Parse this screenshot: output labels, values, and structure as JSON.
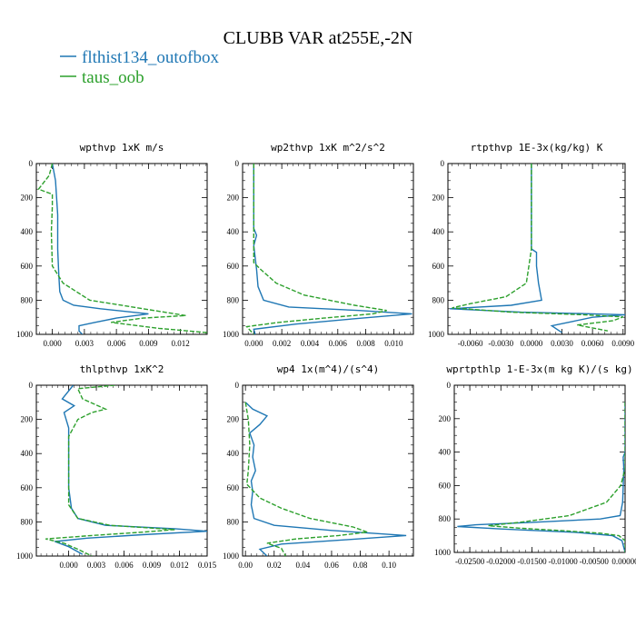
{
  "figure_title": "CLUBB VAR at255E,-2N",
  "legend": [
    {
      "label": "flthist134_outofbox",
      "color": "#1f77b4",
      "dash": "solid"
    },
    {
      "label": "taus_oob",
      "color": "#2ca02c",
      "dash": "dashed"
    }
  ],
  "chart_data": [
    {
      "type": "line",
      "title": "wpthvp  1xK m/s",
      "ylim": [
        1000,
        0
      ],
      "yticks": [
        0,
        200,
        400,
        600,
        800,
        1000
      ],
      "xlim": [
        -0.0015,
        0.0145
      ],
      "xticks": [
        0,
        0.003,
        0.006,
        0.009,
        0.012
      ],
      "xticklabels": [
        "0.000",
        "0.003",
        "0.006",
        "0.009",
        "0.012"
      ],
      "series": [
        {
          "name": "flthist134_outofbox",
          "points": [
            [
              0.0,
              0
            ],
            [
              0.0003,
              100
            ],
            [
              0.0005,
              300
            ],
            [
              0.0005,
              500
            ],
            [
              0.0006,
              650
            ],
            [
              0.0007,
              750
            ],
            [
              0.001,
              800
            ],
            [
              0.002,
              830
            ],
            [
              0.0045,
              850
            ],
            [
              0.009,
              880
            ],
            [
              0.006,
              905
            ],
            [
              0.004,
              930
            ],
            [
              0.0025,
              950
            ],
            [
              0.0025,
              980
            ],
            [
              0.0028,
              1000
            ]
          ]
        },
        {
          "name": "taus_oob",
          "points": [
            [
              0.0,
              0
            ],
            [
              -0.0003,
              70
            ],
            [
              -0.0013,
              150
            ],
            [
              0.0,
              180
            ],
            [
              0.0,
              250
            ],
            [
              -0.0001,
              400
            ],
            [
              0.0,
              600
            ],
            [
              0.001,
              700
            ],
            [
              0.0035,
              800
            ],
            [
              0.0075,
              840
            ],
            [
              0.0105,
              870
            ],
            [
              0.0125,
              890
            ],
            [
              0.0085,
              905
            ],
            [
              0.0055,
              930
            ],
            [
              0.01,
              965
            ],
            [
              0.0145,
              990
            ]
          ]
        }
      ]
    },
    {
      "type": "line",
      "title": "wp2thvp  1xK m^2/s^2",
      "ylim": [
        1000,
        0
      ],
      "yticks": [
        0,
        200,
        400,
        600,
        800,
        1000
      ],
      "xlim": [
        -0.0008,
        0.0114
      ],
      "xticks": [
        0,
        0.002,
        0.004,
        0.006,
        0.008,
        0.01
      ],
      "xticklabels": [
        "0.000",
        "0.002",
        "0.004",
        "0.006",
        "0.008",
        "0.010"
      ],
      "series": [
        {
          "name": "flthist134_outofbox",
          "points": [
            [
              0.0,
              0
            ],
            [
              0.0,
              200
            ],
            [
              0.0,
              380
            ],
            [
              0.0002,
              420
            ],
            [
              0.0,
              480
            ],
            [
              0.0002,
              620
            ],
            [
              0.0003,
              720
            ],
            [
              0.0007,
              800
            ],
            [
              0.0025,
              840
            ],
            [
              0.0075,
              860
            ],
            [
              0.0113,
              880
            ],
            [
              0.007,
              910
            ],
            [
              0.003,
              940
            ],
            [
              0.0,
              970
            ],
            [
              0.0001,
              1000
            ]
          ]
        },
        {
          "name": "taus_oob",
          "points": [
            [
              0.0,
              0
            ],
            [
              0.0,
              150
            ],
            [
              0.0,
              300
            ],
            [
              0.0,
              450
            ],
            [
              0.0,
              580
            ],
            [
              0.0005,
              620
            ],
            [
              0.0016,
              700
            ],
            [
              0.0036,
              770
            ],
            [
              0.0072,
              830
            ],
            [
              0.0095,
              860
            ],
            [
              0.0085,
              880
            ],
            [
              0.005,
              905
            ],
            [
              0.0018,
              930
            ],
            [
              -0.0005,
              955
            ],
            [
              0.0,
              1000
            ]
          ]
        }
      ]
    },
    {
      "type": "line",
      "title": "rtpthvp  1E-3x(kg/kg) K",
      "ylim": [
        1000,
        0
      ],
      "yticks": [
        0,
        200,
        400,
        600,
        800,
        1000
      ],
      "xlim": [
        -0.0082,
        0.0092
      ],
      "xticks": [
        -0.006,
        -0.003,
        0,
        0.003,
        0.006,
        0.009
      ],
      "xticklabels": [
        "-0.0060",
        "-0.0030",
        "0.0000",
        "0.0030",
        "0.0060",
        "0.0090"
      ],
      "series": [
        {
          "name": "flthist134_outofbox",
          "points": [
            [
              0.0,
              0
            ],
            [
              0.0,
              300
            ],
            [
              0.0,
              500
            ],
            [
              0.0005,
              520
            ],
            [
              0.0005,
              600
            ],
            [
              0.0007,
              700
            ],
            [
              0.001,
              800
            ],
            [
              -0.002,
              830
            ],
            [
              -0.008,
              850
            ],
            [
              -0.001,
              870
            ],
            [
              0.006,
              880
            ],
            [
              0.0092,
              885
            ],
            [
              0.006,
              900
            ],
            [
              0.004,
              925
            ],
            [
              0.002,
              950
            ],
            [
              0.003,
              990
            ]
          ]
        },
        {
          "name": "taus_oob",
          "points": [
            [
              0.0,
              0
            ],
            [
              0.0,
              300
            ],
            [
              0.0,
              500
            ],
            [
              -0.0005,
              700
            ],
            [
              -0.0025,
              780
            ],
            [
              -0.006,
              820
            ],
            [
              -0.0078,
              845
            ],
            [
              -0.002,
              870
            ],
            [
              0.005,
              885
            ],
            [
              0.009,
              898
            ],
            [
              0.008,
              920
            ],
            [
              0.0045,
              945
            ],
            [
              0.0075,
              980
            ]
          ]
        }
      ]
    },
    {
      "type": "line",
      "title": "thlpthvp  1xK^2",
      "ylim": [
        1000,
        0
      ],
      "yticks": [
        0,
        200,
        400,
        600,
        800,
        1000
      ],
      "xlim": [
        -0.0035,
        0.015
      ],
      "xticks": [
        0,
        0.003,
        0.006,
        0.009,
        0.012,
        0.015
      ],
      "xticklabels": [
        "0.000",
        "0.003",
        "0.006",
        "0.009",
        "0.012",
        "0.015"
      ],
      "series": [
        {
          "name": "flthist134_outofbox",
          "points": [
            [
              0.0005,
              0
            ],
            [
              -0.0007,
              80
            ],
            [
              0.0006,
              120
            ],
            [
              -0.0005,
              160
            ],
            [
              0.0,
              250
            ],
            [
              0.0,
              400
            ],
            [
              0.0,
              600
            ],
            [
              0.0003,
              720
            ],
            [
              0.001,
              780
            ],
            [
              0.004,
              820
            ],
            [
              0.0115,
              840
            ],
            [
              0.015,
              855
            ],
            [
              0.008,
              875
            ],
            [
              0.002,
              895
            ],
            [
              -0.0015,
              915
            ],
            [
              0.0,
              945
            ],
            [
              0.0015,
              990
            ]
          ]
        },
        {
          "name": "taus_oob",
          "points": [
            [
              0.005,
              0
            ],
            [
              0.001,
              20
            ],
            [
              0.0015,
              80
            ],
            [
              0.004,
              140
            ],
            [
              0.0025,
              160
            ],
            [
              0.001,
              200
            ],
            [
              0.0,
              300
            ],
            [
              0.0,
              500
            ],
            [
              0.0,
              700
            ],
            [
              0.001,
              780
            ],
            [
              0.0045,
              820
            ],
            [
              0.0115,
              845
            ],
            [
              0.008,
              860
            ],
            [
              0.0025,
              880
            ],
            [
              -0.0025,
              900
            ],
            [
              -0.0005,
              925
            ],
            [
              0.001,
              960
            ],
            [
              0.0025,
              1000
            ]
          ]
        }
      ]
    },
    {
      "type": "line",
      "title": "wp4  1x(m^4)/(s^4)",
      "ylim": [
        1000,
        0
      ],
      "yticks": [
        0,
        200,
        400,
        600,
        800,
        1000
      ],
      "xlim": [
        -0.002,
        0.117
      ],
      "xticks": [
        0,
        0.02,
        0.04,
        0.06,
        0.08,
        0.1
      ],
      "xticklabels": [
        "0.00",
        "0.02",
        "0.04",
        "0.06",
        "0.08",
        "0.10"
      ],
      "series": [
        {
          "name": "flthist134_outofbox",
          "points": [
            [
              0.0,
              100
            ],
            [
              0.005,
              140
            ],
            [
              0.015,
              180
            ],
            [
              0.01,
              230
            ],
            [
              0.003,
              280
            ],
            [
              0.006,
              350
            ],
            [
              0.005,
              420
            ],
            [
              0.007,
              500
            ],
            [
              0.004,
              560
            ],
            [
              0.005,
              620
            ],
            [
              0.004,
              700
            ],
            [
              0.006,
              780
            ],
            [
              0.02,
              820
            ],
            [
              0.06,
              850
            ],
            [
              0.112,
              880
            ],
            [
              0.07,
              905
            ],
            [
              0.025,
              930
            ],
            [
              0.01,
              960
            ],
            [
              0.015,
              1000
            ]
          ]
        },
        {
          "name": "taus_oob",
          "points": [
            [
              0.0,
              100
            ],
            [
              0.002,
              200
            ],
            [
              0.003,
              350
            ],
            [
              0.002,
              500
            ],
            [
              0.001,
              580
            ],
            [
              0.01,
              660
            ],
            [
              0.025,
              720
            ],
            [
              0.045,
              780
            ],
            [
              0.075,
              830
            ],
            [
              0.085,
              860
            ],
            [
              0.065,
              880
            ],
            [
              0.035,
              900
            ],
            [
              0.015,
              925
            ],
            [
              0.025,
              955
            ],
            [
              0.028,
              1000
            ]
          ]
        }
      ]
    },
    {
      "type": "line",
      "title": "wprtpthlp  1-E-3x(m kg K)/(s kg)",
      "ylim": [
        1000,
        0
      ],
      "yticks": [
        0,
        200,
        400,
        600,
        800,
        1000
      ],
      "xlim": [
        -0.0275,
        0.0
      ],
      "xticks": [
        -0.025,
        -0.02,
        -0.015,
        -0.01,
        -0.005,
        0
      ],
      "xticklabels": [
        "-0.02500",
        "-0.02000",
        "-0.01500",
        "-0.01000",
        "-0.00500",
        "0.00000"
      ],
      "series": [
        {
          "name": "flthist134_outofbox",
          "points": [
            [
              0.0,
              100
            ],
            [
              0.0,
              300
            ],
            [
              0.0,
              400
            ],
            [
              -0.0003,
              430
            ],
            [
              -0.0002,
              500
            ],
            [
              -0.0004,
              700
            ],
            [
              -0.0008,
              780
            ],
            [
              -0.004,
              800
            ],
            [
              -0.015,
              820
            ],
            [
              -0.024,
              835
            ],
            [
              -0.027,
              845
            ],
            [
              -0.02,
              860
            ],
            [
              -0.008,
              880
            ],
            [
              -0.002,
              900
            ],
            [
              -0.0005,
              930
            ],
            [
              0.0,
              1000
            ]
          ]
        },
        {
          "name": "taus_oob",
          "points": [
            [
              0.0,
              100
            ],
            [
              0.0,
              300
            ],
            [
              0.0,
              500
            ],
            [
              -0.0007,
              600
            ],
            [
              -0.003,
              700
            ],
            [
              -0.009,
              780
            ],
            [
              -0.017,
              820
            ],
            [
              -0.022,
              840
            ],
            [
              -0.017,
              855
            ],
            [
              -0.01,
              870
            ],
            [
              -0.004,
              885
            ],
            [
              -0.001,
              900
            ],
            [
              0.0,
              930
            ],
            [
              0.0,
              1000
            ]
          ]
        }
      ]
    }
  ]
}
